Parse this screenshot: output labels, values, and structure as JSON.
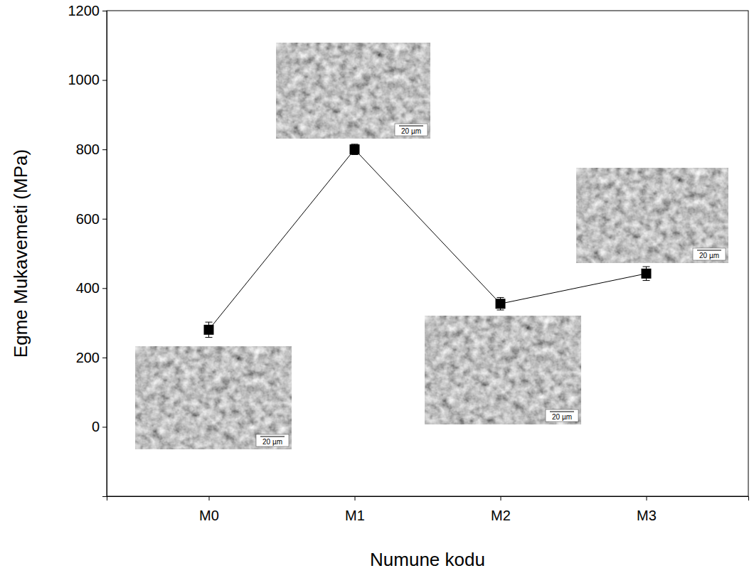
{
  "chart_data": {
    "type": "line",
    "x_label": "Numune kodu",
    "y_label": "Egme Mukavemeti (MPa)",
    "categories": [
      "M0",
      "M1",
      "M2",
      "M3"
    ],
    "values": [
      280,
      800,
      355,
      442
    ],
    "errors": [
      22,
      15,
      18,
      20
    ],
    "color": "#000000",
    "marker": "square",
    "line_style": "solid",
    "ylim": [
      -200,
      1200
    ],
    "yticks": [
      0,
      200,
      400,
      600,
      800,
      1000,
      1200
    ],
    "grid": false,
    "annotations": [
      {
        "category": "M0",
        "text": "20 µm"
      },
      {
        "category": "M1",
        "text": "20 µm"
      },
      {
        "category": "M2",
        "text": "20 µm"
      },
      {
        "category": "M3",
        "text": "20 µm"
      }
    ]
  }
}
